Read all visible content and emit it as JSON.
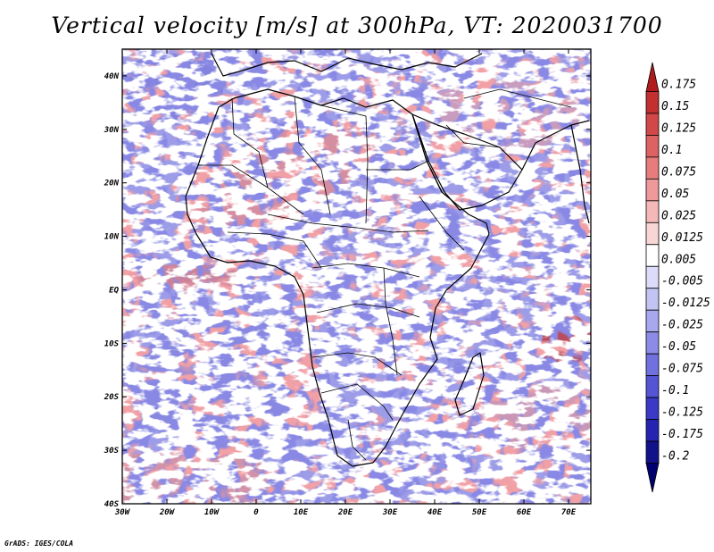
{
  "title": "Vertical velocity [m/s] at 300hPa, VT: 2020031700",
  "credit": "GrADS: IGES/COLA",
  "map": {
    "lon_range": [
      -30,
      75
    ],
    "lat_range": [
      -40,
      45
    ],
    "lon_ticks": [
      "30W",
      "20W",
      "10W",
      "0",
      "10E",
      "20E",
      "30E",
      "40E",
      "50E",
      "60E",
      "70E"
    ],
    "lat_ticks": [
      "40N",
      "30N",
      "20N",
      "10N",
      "EQ",
      "10S",
      "20S",
      "30S",
      "40S"
    ]
  },
  "colorbar": {
    "levels": [
      "0.175",
      "0.15",
      "0.125",
      "0.1",
      "0.075",
      "0.05",
      "0.025",
      "0.0125",
      "0.005",
      "-0.005",
      "-0.0125",
      "-0.025",
      "-0.05",
      "-0.075",
      "-0.1",
      "-0.125",
      "-0.175",
      "-0.2"
    ],
    "colors": [
      "#b01c1c",
      "#c23030",
      "#d24848",
      "#de6262",
      "#e67c7c",
      "#ee9a9a",
      "#f4b8b8",
      "#f9d6d6",
      "#ffffff",
      "#dcdcfa",
      "#c4c4f4",
      "#a8a8ee",
      "#8c8ce6",
      "#7070de",
      "#5454d4",
      "#3a3ac6",
      "#2424b0",
      "#12128a",
      "#000070"
    ]
  }
}
